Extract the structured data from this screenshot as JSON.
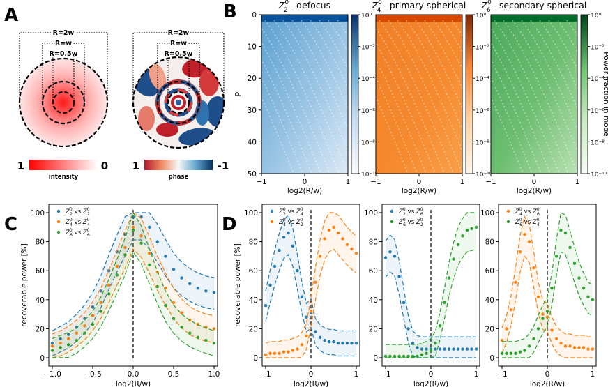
{
  "panel_letters": [
    "A",
    "B",
    "C",
    "D"
  ],
  "panel_a": {
    "radius_labels": [
      "R=2w",
      "R=w",
      "R=0.5w"
    ],
    "intensity_colorbar": {
      "low": "1",
      "high": "0",
      "label": "intensity"
    },
    "phase_colorbar": {
      "low": "1",
      "high": "-1",
      "label": "phase"
    }
  },
  "colors": {
    "blue": "#1f77b4",
    "orange": "#ff7f0e",
    "green": "#2ca02c",
    "heat_blue": "#08519c",
    "heat_orange": "#d94801",
    "heat_green": "#006d2c",
    "intensity_red": "#ff2020"
  },
  "chart_data": [
    {
      "type": "heatmap",
      "title": "Z20 - defocus",
      "title_parts": {
        "symbol": "Z",
        "sub": "2",
        "sup": "0",
        "rest": " - defocus"
      },
      "xlabel": "log2(R/w)",
      "ylabel": "p",
      "xlim": [
        -1,
        1
      ],
      "ylim": [
        50,
        0
      ],
      "xticks": [
        "−1",
        "0",
        "1"
      ],
      "yticks": [
        "0",
        "10",
        "20",
        "30",
        "40",
        "50"
      ],
      "cmap": "Blues"
    },
    {
      "type": "heatmap",
      "title": "Z40 - primary spherical",
      "title_parts": {
        "symbol": "Z",
        "sub": "4",
        "sup": "0",
        "rest": " - primary spherical"
      },
      "xlabel": "log2(R/w)",
      "xlim": [
        -1,
        1
      ],
      "ylim": [
        50,
        0
      ],
      "xticks": [
        "−1",
        "0",
        "1"
      ],
      "cmap": "Oranges"
    },
    {
      "type": "heatmap",
      "title": "Z60 - secondary spherical",
      "title_parts": {
        "symbol": "Z",
        "sub": "6",
        "sup": "0",
        "rest": " - secondary spherical"
      },
      "xlabel": "log2(R/w)",
      "xlim": [
        -1,
        1
      ],
      "ylim": [
        50,
        0
      ],
      "xticks": [
        "−1",
        "0",
        "1"
      ],
      "cmap": "Greens",
      "colorbar_label": "Power fraction in mode"
    },
    {
      "type": "line",
      "panel": "C",
      "xlabel": "log2(R/w)",
      "ylabel": "recoverable power [%]",
      "xlim": [
        -1.0,
        1.0
      ],
      "ylim": [
        0,
        100
      ],
      "xticks": [
        "−1.0",
        "−0.5",
        "0.0",
        "0.5",
        "1.0"
      ],
      "yticks": [
        "0",
        "20",
        "40",
        "60",
        "80",
        "100"
      ],
      "legend_position": "top-left",
      "series": [
        {
          "name": "Z20 vs Z20",
          "color": "#1f77b4",
          "x": [
            -1.0,
            -0.9,
            -0.8,
            -0.7,
            -0.6,
            -0.5,
            -0.4,
            -0.3,
            -0.2,
            -0.1,
            0.0,
            0.1,
            0.2,
            0.3,
            0.4,
            0.5,
            0.6,
            0.7,
            0.8,
            0.9,
            1.0
          ],
          "y": [
            10,
            13,
            16,
            21,
            27,
            35,
            46,
            60,
            73,
            85,
            97,
            97,
            90,
            80,
            70,
            61,
            55,
            51,
            48,
            46,
            45
          ]
        },
        {
          "name": "Z40 vs Z40",
          "color": "#ff7f0e",
          "x": [
            -1.0,
            -0.9,
            -0.8,
            -0.7,
            -0.6,
            -0.5,
            -0.4,
            -0.3,
            -0.2,
            -0.1,
            0.0,
            0.1,
            0.2,
            0.3,
            0.4,
            0.5,
            0.6,
            0.7,
            0.8,
            0.9,
            1.0
          ],
          "y": [
            8,
            10,
            13,
            17,
            22,
            29,
            38,
            50,
            63,
            76,
            90,
            84,
            72,
            59,
            48,
            38,
            31,
            26,
            23,
            21,
            20
          ]
        },
        {
          "name": "Z60 vs Z60",
          "color": "#2ca02c",
          "x": [
            -1.0,
            -0.9,
            -0.8,
            -0.7,
            -0.6,
            -0.5,
            -0.4,
            -0.3,
            -0.2,
            -0.1,
            0.0,
            0.1,
            0.2,
            0.3,
            0.4,
            0.5,
            0.6,
            0.7,
            0.8,
            0.9,
            1.0
          ],
          "y": [
            5,
            7,
            9,
            12,
            17,
            23,
            32,
            44,
            57,
            71,
            88,
            79,
            64,
            49,
            36,
            27,
            21,
            17,
            14,
            12,
            10
          ]
        }
      ]
    },
    {
      "type": "line",
      "panel": "D1",
      "xlabel": "log2(R/w)",
      "ylabel": "recoverable power [%]",
      "xlim": [
        -1,
        1
      ],
      "ylim": [
        0,
        100
      ],
      "xticks": [
        "−1",
        "0",
        "1"
      ],
      "yticks": [
        "0",
        "20",
        "40",
        "60",
        "80",
        "100"
      ],
      "legend_position": "top-left",
      "series": [
        {
          "name": "Z20 vs Z40",
          "color": "#1f77b4",
          "x": [
            -1.0,
            -0.9,
            -0.8,
            -0.7,
            -0.6,
            -0.5,
            -0.4,
            -0.3,
            -0.2,
            -0.1,
            0.0,
            0.1,
            0.2,
            0.3,
            0.4,
            0.5,
            0.6,
            0.7,
            0.8,
            0.9,
            1.0
          ],
          "y": [
            36,
            50,
            63,
            74,
            83,
            86,
            77,
            60,
            42,
            28,
            31,
            18,
            14,
            12,
            11,
            11,
            10,
            10,
            10,
            10,
            10
          ]
        },
        {
          "name": "Z40 vs Z20",
          "color": "#ff7f0e",
          "x": [
            -1.0,
            -0.9,
            -0.8,
            -0.7,
            -0.6,
            -0.5,
            -0.4,
            -0.3,
            -0.2,
            -0.1,
            0.0,
            0.1,
            0.2,
            0.3,
            0.4,
            0.5,
            0.6,
            0.7,
            0.8,
            0.9,
            1.0
          ],
          "y": [
            2,
            3,
            3,
            3,
            4,
            4,
            5,
            6,
            9,
            15,
            32,
            52,
            70,
            82,
            88,
            90,
            86,
            82,
            78,
            75,
            72
          ]
        }
      ]
    },
    {
      "type": "line",
      "panel": "D2",
      "xlabel": "log2(R/w)",
      "xlim": [
        -1,
        1
      ],
      "ylim": [
        0,
        100
      ],
      "xticks": [
        "−1",
        "0",
        "1"
      ],
      "yticks": [
        "0",
        "20",
        "40",
        "60",
        "80",
        "100"
      ],
      "legend_position": "top-left",
      "series": [
        {
          "name": "Z20 vs Z60",
          "color": "#1f77b4",
          "x": [
            -1.0,
            -0.9,
            -0.8,
            -0.7,
            -0.6,
            -0.5,
            -0.4,
            -0.3,
            -0.2,
            -0.1,
            0.0,
            0.1,
            0.2,
            0.3,
            0.4,
            0.5,
            0.6,
            0.7,
            0.8,
            0.9,
            1.0
          ],
          "y": [
            69,
            73,
            70,
            56,
            38,
            20,
            10,
            7,
            6,
            6,
            6,
            6,
            6,
            6,
            6,
            6,
            6,
            6,
            6,
            6,
            6
          ]
        },
        {
          "name": "Z60 vs Z20",
          "color": "#2ca02c",
          "x": [
            -1.0,
            -0.9,
            -0.8,
            -0.7,
            -0.6,
            -0.5,
            -0.4,
            -0.3,
            -0.2,
            -0.1,
            0.0,
            0.1,
            0.2,
            0.3,
            0.4,
            0.5,
            0.6,
            0.7,
            0.8,
            0.9,
            1.0
          ],
          "y": [
            1,
            1,
            1,
            1,
            1,
            1,
            1,
            1,
            2,
            3,
            5,
            10,
            22,
            38,
            55,
            68,
            78,
            84,
            88,
            89,
            90
          ]
        }
      ]
    },
    {
      "type": "line",
      "panel": "D3",
      "xlabel": "log2(R/w)",
      "xlim": [
        -1,
        1
      ],
      "ylim": [
        0,
        100
      ],
      "xticks": [
        "−1",
        "0",
        "1"
      ],
      "yticks": [
        "0",
        "20",
        "40",
        "60",
        "80",
        "100"
      ],
      "legend_position": "top-left",
      "series": [
        {
          "name": "Z40 vs Z60",
          "color": "#ff7f0e",
          "x": [
            -1.0,
            -0.9,
            -0.8,
            -0.7,
            -0.6,
            -0.5,
            -0.4,
            -0.3,
            -0.2,
            -0.1,
            0.0,
            0.1,
            0.2,
            0.3,
            0.4,
            0.5,
            0.6,
            0.7,
            0.8,
            0.9,
            1.0
          ],
          "y": [
            12,
            20,
            33,
            52,
            73,
            85,
            80,
            62,
            42,
            30,
            28,
            19,
            13,
            10,
            8,
            8,
            7,
            7,
            7,
            6,
            6
          ]
        },
        {
          "name": "Z60 vs Z40",
          "color": "#2ca02c",
          "x": [
            -1.0,
            -0.9,
            -0.8,
            -0.7,
            -0.6,
            -0.5,
            -0.4,
            -0.3,
            -0.2,
            -0.1,
            0.0,
            0.1,
            0.2,
            0.3,
            0.4,
            0.5,
            0.6,
            0.7,
            0.8,
            0.9,
            1.0
          ],
          "y": [
            3,
            3,
            3,
            3,
            4,
            5,
            8,
            13,
            20,
            27,
            32,
            48,
            70,
            88,
            86,
            76,
            65,
            55,
            48,
            42,
            40
          ]
        }
      ]
    }
  ]
}
